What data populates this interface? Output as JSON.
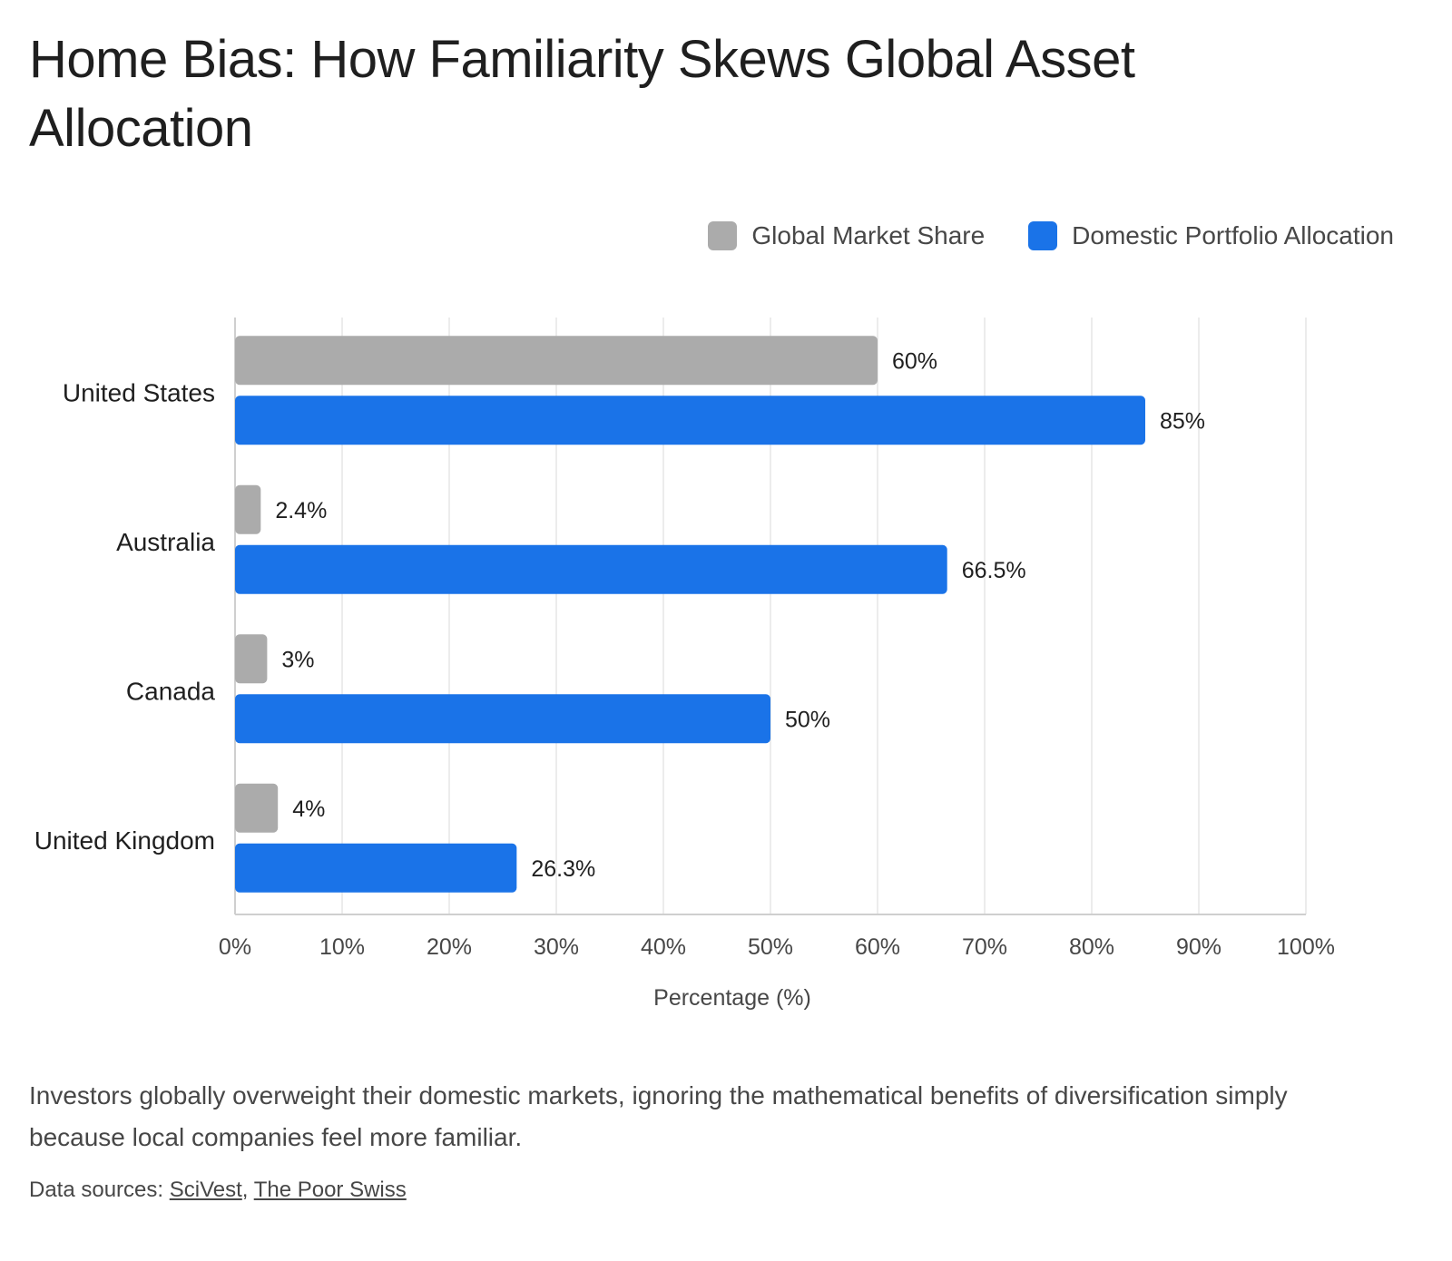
{
  "title": "Home Bias: How Familiarity Skews Global Asset Allocation",
  "description": "Investors globally overweight their domestic markets, ignoring the mathematical benefits of diversification simply because local companies feel more familiar.",
  "sources": {
    "label": "Data sources:",
    "links": [
      "SciVest",
      "The Poor Swiss"
    ],
    "separator": ","
  },
  "chart_data": {
    "type": "bar",
    "orientation": "horizontal",
    "categories": [
      "United States",
      "Australia",
      "Canada",
      "United Kingdom"
    ],
    "series": [
      {
        "name": "Global Market Share",
        "values": [
          60,
          2.4,
          3,
          4
        ],
        "labels": [
          "60%",
          "2.4%",
          "3%",
          "4%"
        ],
        "color": "#ababab"
      },
      {
        "name": "Domestic Portfolio Allocation",
        "values": [
          85,
          66.5,
          50,
          26.3
        ],
        "labels": [
          "85%",
          "66.5%",
          "50%",
          "26.3%"
        ],
        "color": "#1a73e8"
      }
    ],
    "xlabel": "Percentage (%)",
    "xlim": [
      0,
      100
    ],
    "xticks": [
      0,
      10,
      20,
      30,
      40,
      50,
      60,
      70,
      80,
      90,
      100
    ],
    "xtick_labels": [
      "0%",
      "10%",
      "20%",
      "30%",
      "40%",
      "50%",
      "60%",
      "70%",
      "80%",
      "90%",
      "100%"
    ],
    "grid": true,
    "legend_position": "top-right"
  }
}
